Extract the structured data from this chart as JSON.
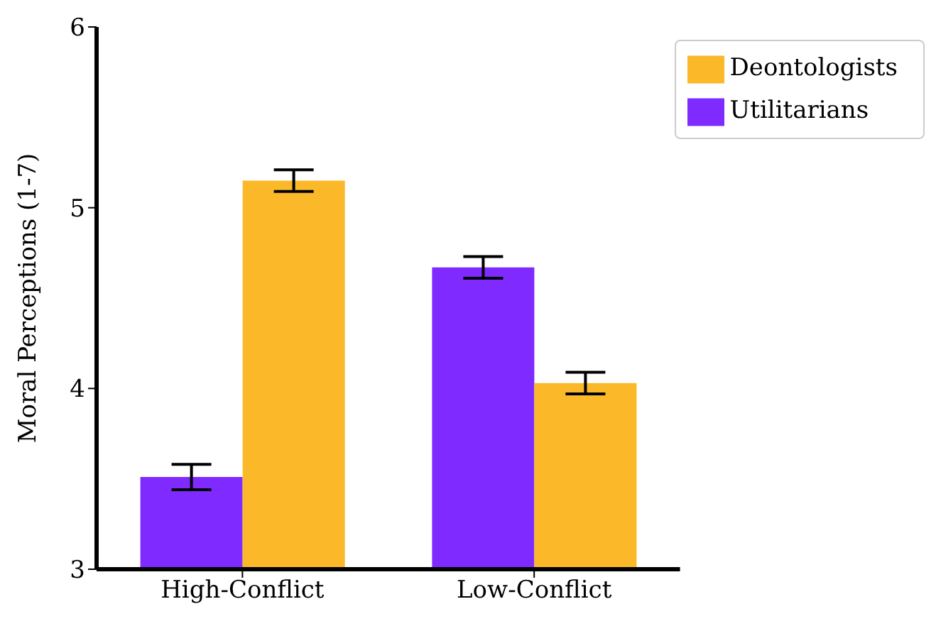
{
  "chart_data": {
    "type": "bar",
    "ylabel": "Moral Perceptions (1-7)",
    "categories": [
      "High-Conflict",
      "Low-Conflict"
    ],
    "series": [
      {
        "name": "Utilitarians",
        "color": "#7f2bff",
        "values": [
          3.51,
          4.67
        ],
        "errors": [
          0.07,
          0.06
        ]
      },
      {
        "name": "Deontologists",
        "color": "#fbb829",
        "values": [
          5.15,
          4.03
        ],
        "errors": [
          0.06,
          0.06
        ]
      }
    ],
    "ylim": [
      3,
      6
    ],
    "yticks": [
      3,
      4,
      5,
      6
    ],
    "grid": false,
    "legend": "top right"
  }
}
